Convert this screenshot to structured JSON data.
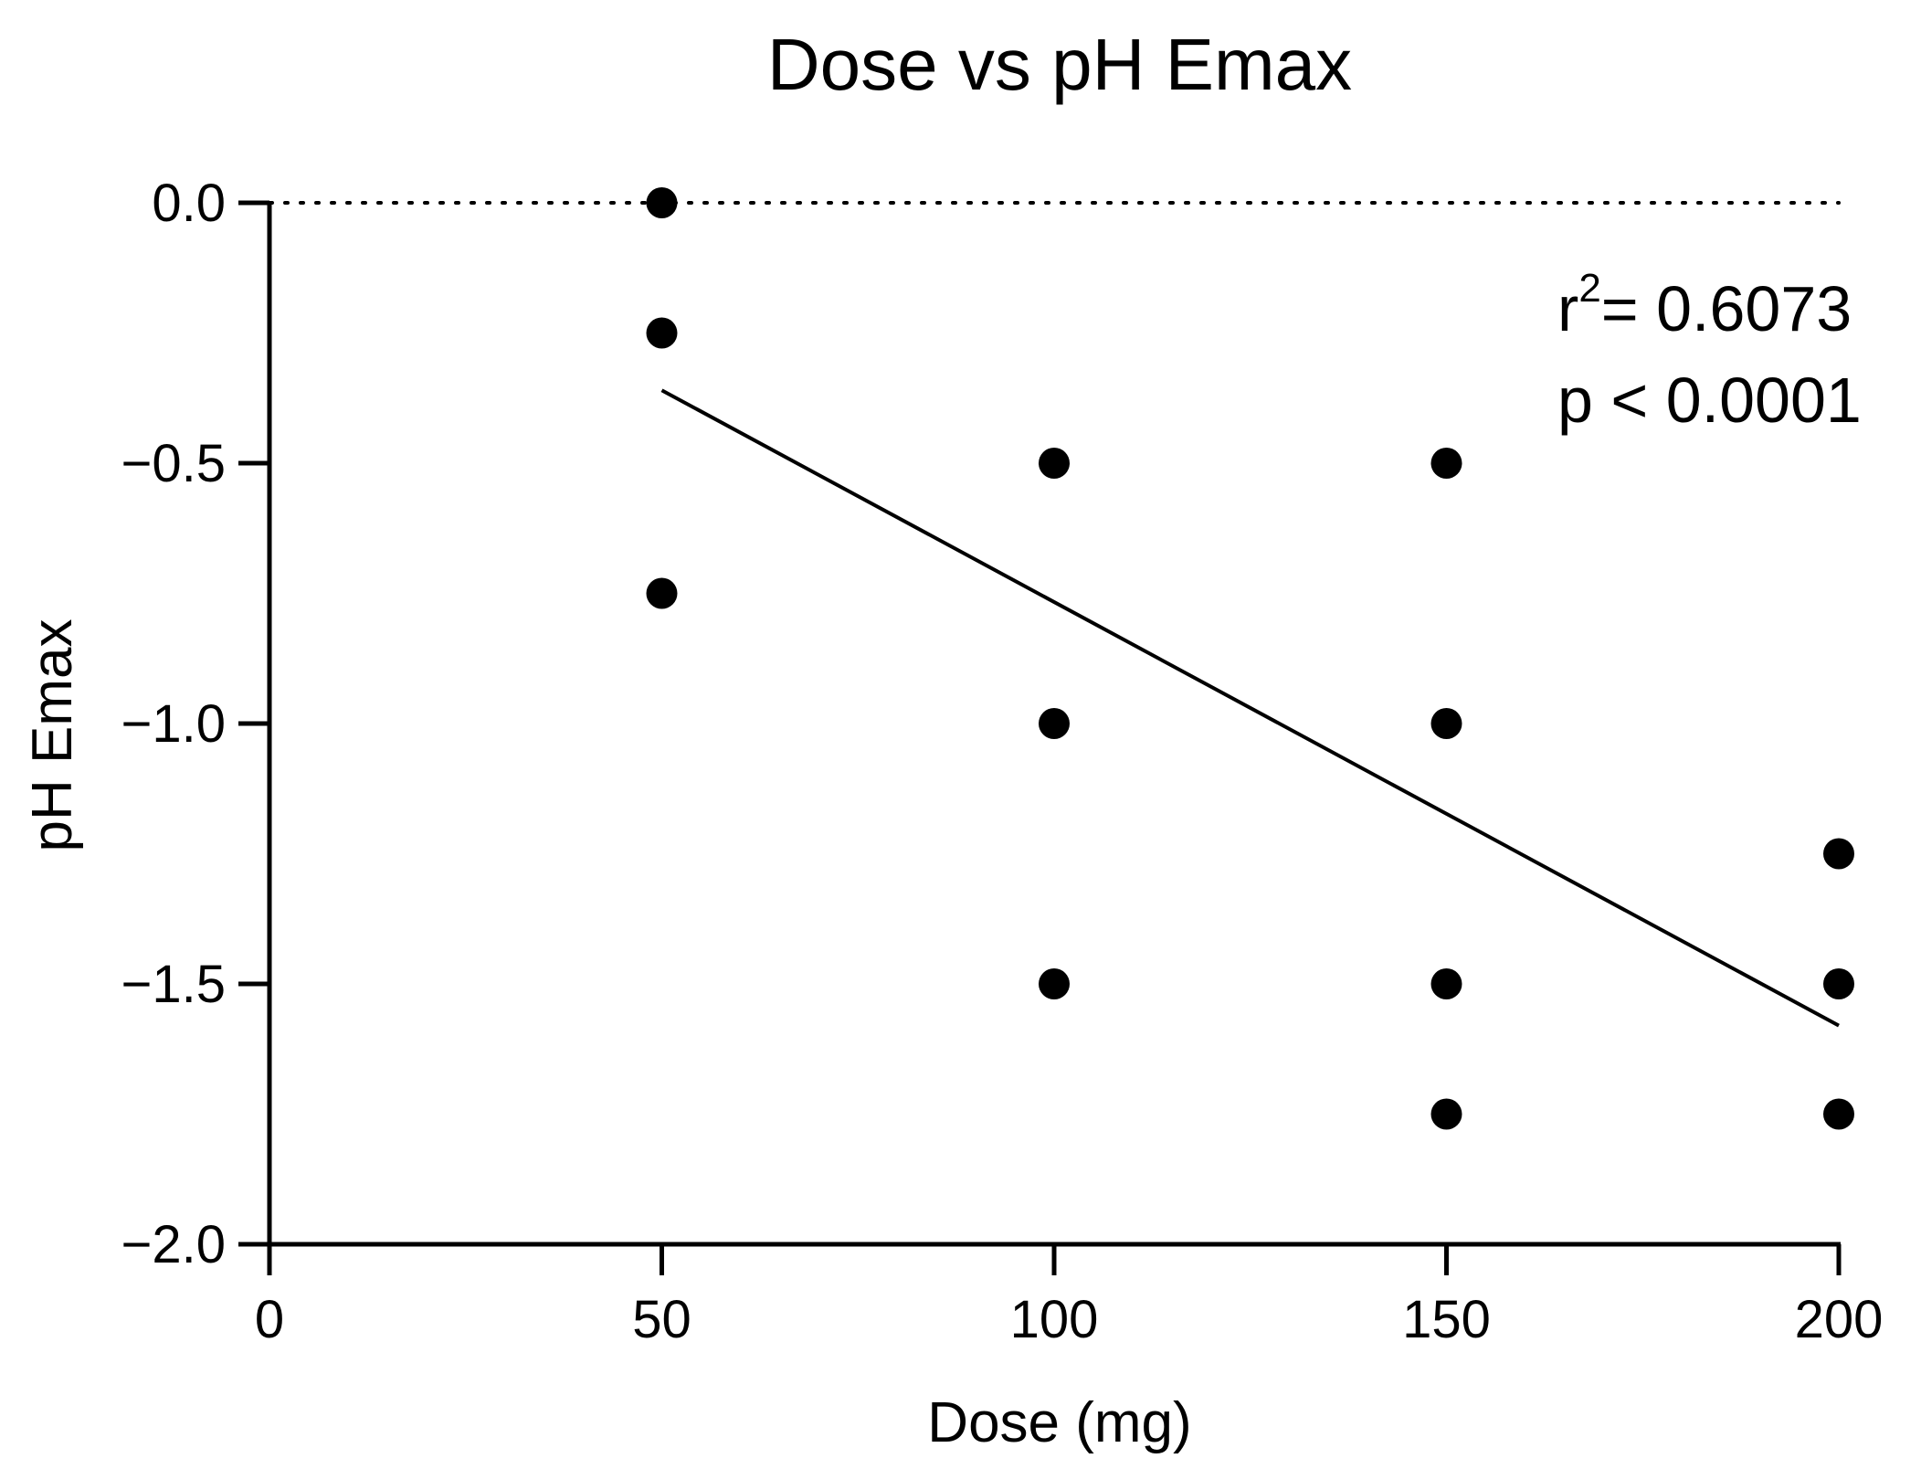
{
  "chart_data": {
    "type": "scatter",
    "title": "Dose vs pH Emax",
    "xlabel": "Dose (mg)",
    "ylabel": "pH Emax",
    "xlim": [
      0,
      200
    ],
    "ylim": [
      -2.0,
      0.0
    ],
    "x_ticks": [
      {
        "value": 0,
        "label": "0"
      },
      {
        "value": 50,
        "label": "50"
      },
      {
        "value": 100,
        "label": "100"
      },
      {
        "value": 150,
        "label": "150"
      },
      {
        "value": 200,
        "label": "200"
      }
    ],
    "y_ticks": [
      {
        "value": 0.0,
        "label": "0.0"
      },
      {
        "value": -0.5,
        "label": "−0.5"
      },
      {
        "value": -1.0,
        "label": "−1.0"
      },
      {
        "value": -1.5,
        "label": "−1.5"
      },
      {
        "value": -2.0,
        "label": "−2.0"
      }
    ],
    "points": [
      {
        "x": 50,
        "y": 0.0
      },
      {
        "x": 50,
        "y": -0.25
      },
      {
        "x": 50,
        "y": -0.75
      },
      {
        "x": 100,
        "y": -0.5
      },
      {
        "x": 100,
        "y": -1.0
      },
      {
        "x": 100,
        "y": -1.5
      },
      {
        "x": 150,
        "y": -0.5
      },
      {
        "x": 150,
        "y": -1.0
      },
      {
        "x": 150,
        "y": -1.5
      },
      {
        "x": 150,
        "y": -1.75
      },
      {
        "x": 200,
        "y": -1.25
      },
      {
        "x": 200,
        "y": -1.5
      },
      {
        "x": 200,
        "y": -1.75
      }
    ],
    "regression_line": {
      "x": [
        50,
        200
      ],
      "y": [
        -0.36,
        -1.58
      ]
    },
    "reference_line": {
      "y": 0.0,
      "style": "dotted"
    },
    "annotation": {
      "r_symbol": "r",
      "r_exponent": "2",
      "r_value": "= 0.6073",
      "p_text": "p < 0.0001"
    },
    "grid": false
  },
  "colors": {
    "ink": "#000000",
    "background": "#ffffff"
  }
}
